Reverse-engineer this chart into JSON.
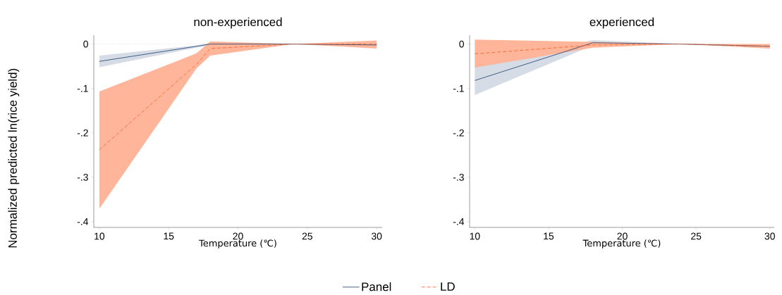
{
  "chart_data": [
    {
      "type": "line",
      "title": "non-experienced",
      "xlabel": "Temperature (℃)",
      "ylabel": "Normalized predicted ln(rice yield)",
      "x": [
        10,
        17,
        18,
        24,
        30
      ],
      "series": [
        {
          "name": "Panel",
          "color": "#1a3c6e",
          "line_style": "solid",
          "values": [
            -0.039,
            -0.005,
            0,
            0,
            -0.002
          ],
          "lower": [
            -0.052,
            -0.008,
            -0.003,
            0,
            -0.006
          ],
          "upper": [
            -0.026,
            -0.003,
            0.003,
            0,
            0.001
          ]
        },
        {
          "name": "LD",
          "color": "#ff5a1f",
          "line_style": "dashed",
          "values": [
            -0.238,
            -0.046,
            -0.01,
            0,
            0
          ],
          "lower": [
            -0.371,
            -0.055,
            -0.026,
            0,
            -0.01
          ],
          "upper": [
            -0.107,
            -0.021,
            0.006,
            0,
            0.008
          ]
        }
      ],
      "xlim": [
        9.6,
        30.4
      ],
      "ylim": [
        -0.413,
        0.02
      ],
      "xticks": [
        10,
        15,
        20,
        25,
        30
      ],
      "yticks": [
        {
          "value": 0,
          "label": "0"
        },
        {
          "value": -0.1,
          "label": "-.1"
        },
        {
          "value": -0.2,
          "label": "-.2"
        },
        {
          "value": -0.3,
          "label": "-.3"
        },
        {
          "value": -0.4,
          "label": "-.4"
        }
      ],
      "ref_lines": [
        {
          "axis": "y",
          "value": 0,
          "color": "#b0b0b0",
          "line_style": "dotted"
        }
      ],
      "grid": false,
      "legend": "bottom"
    },
    {
      "type": "line",
      "title": "experienced",
      "xlabel": "Temperature (℃)",
      "x": [
        10,
        18,
        24,
        30
      ],
      "series": [
        {
          "color": "#1a3c6e",
          "line_style": "solid",
          "values": [
            -0.082,
            0.003,
            0,
            -0.005
          ],
          "lower": [
            -0.115,
            -0.003,
            0,
            -0.007
          ],
          "upper": [
            -0.05,
            0.009,
            0,
            -0.003
          ]
        },
        {
          "color": "#ff5a1f",
          "line_style": "dashed",
          "values": [
            -0.022,
            -0.002,
            0,
            -0.005
          ],
          "lower": [
            -0.053,
            -0.008,
            0,
            -0.01
          ],
          "upper": [
            0.01,
            0.005,
            0,
            0
          ]
        }
      ],
      "xlim": [
        9.65,
        30.3
      ],
      "ylim": [
        -0.413,
        0.02
      ],
      "xticks": [
        10,
        15,
        20,
        25,
        30
      ],
      "yticks": [
        {
          "value": 0,
          "label": "0"
        },
        {
          "value": -0.1,
          "label": "-.1"
        },
        {
          "value": -0.2,
          "label": "-.2"
        },
        {
          "value": -0.3,
          "label": "-.3"
        },
        {
          "value": -0.4,
          "label": "-.4"
        }
      ],
      "ref_lines": [
        {
          "axis": "y",
          "value": 0,
          "color": "#b0b0b0",
          "line_style": "dotted"
        }
      ],
      "grid": false
    }
  ]
}
